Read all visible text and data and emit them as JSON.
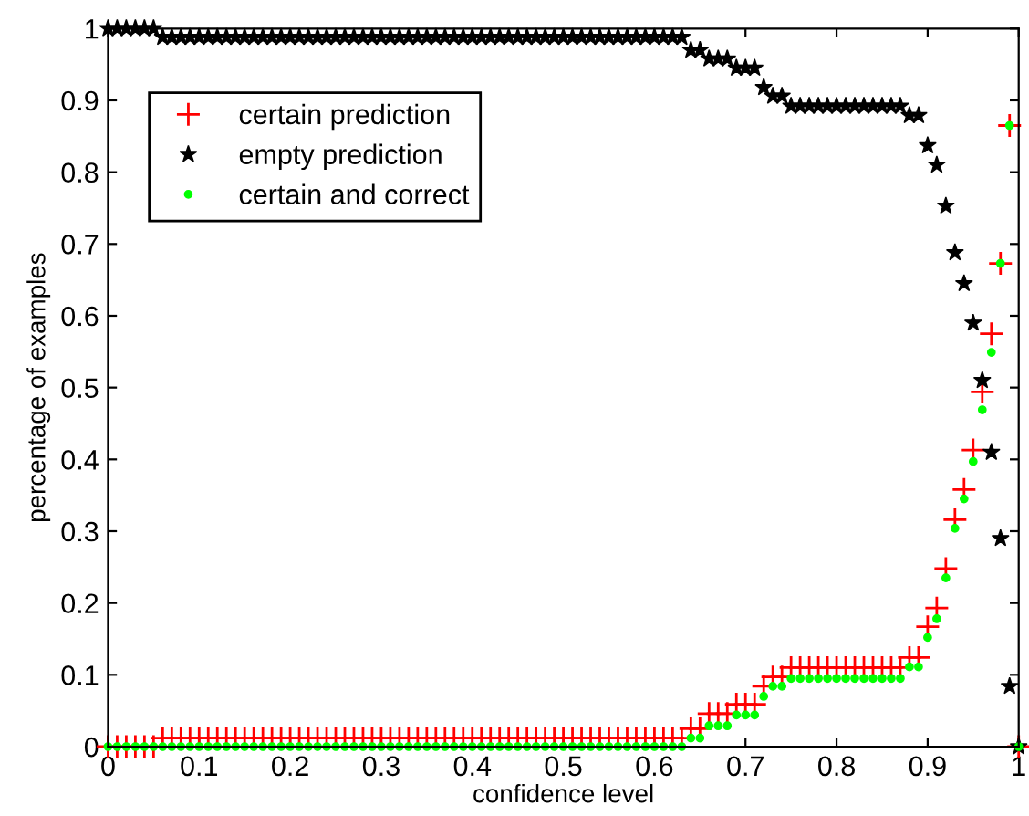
{
  "chart_data": {
    "type": "scatter",
    "xlabel": "confidence level",
    "ylabel": "percentage of examples",
    "x": [
      0,
      0.01,
      0.02,
      0.03,
      0.04,
      0.05,
      0.06,
      0.07,
      0.08,
      0.09,
      0.1,
      0.11,
      0.12,
      0.13,
      0.14,
      0.15,
      0.16,
      0.17,
      0.18,
      0.19,
      0.2,
      0.21,
      0.22,
      0.23,
      0.24,
      0.25,
      0.26,
      0.27,
      0.28,
      0.29,
      0.3,
      0.31,
      0.32,
      0.33,
      0.34,
      0.35,
      0.36,
      0.37,
      0.38,
      0.39,
      0.4,
      0.41,
      0.42,
      0.43,
      0.44,
      0.45,
      0.46,
      0.47,
      0.48,
      0.49,
      0.5,
      0.51,
      0.52,
      0.53,
      0.54,
      0.55,
      0.56,
      0.57,
      0.58,
      0.59,
      0.6,
      0.61,
      0.62,
      0.63,
      0.64,
      0.65,
      0.66,
      0.67,
      0.68,
      0.69,
      0.7,
      0.71,
      0.72,
      0.73,
      0.74,
      0.75,
      0.76,
      0.77,
      0.78,
      0.79,
      0.8,
      0.81,
      0.82,
      0.83,
      0.84,
      0.85,
      0.86,
      0.87,
      0.88,
      0.89,
      0.9,
      0.91,
      0.92,
      0.93,
      0.94,
      0.95,
      0.96,
      0.97,
      0.98,
      0.99,
      1
    ],
    "series": [
      {
        "name": "certain prediction",
        "color": "#ff0000",
        "marker": "cross",
        "values": [
          0,
          0,
          0,
          0,
          0,
          0,
          0.012,
          0.012,
          0.012,
          0.012,
          0.012,
          0.012,
          0.012,
          0.012,
          0.012,
          0.012,
          0.012,
          0.012,
          0.012,
          0.012,
          0.012,
          0.012,
          0.012,
          0.012,
          0.012,
          0.012,
          0.012,
          0.012,
          0.012,
          0.012,
          0.012,
          0.012,
          0.012,
          0.012,
          0.012,
          0.012,
          0.012,
          0.012,
          0.012,
          0.012,
          0.012,
          0.012,
          0.012,
          0.012,
          0.012,
          0.012,
          0.012,
          0.012,
          0.012,
          0.012,
          0.012,
          0.012,
          0.012,
          0.012,
          0.012,
          0.012,
          0.012,
          0.012,
          0.012,
          0.012,
          0.012,
          0.012,
          0.012,
          0.012,
          0.025,
          0.025,
          0.046,
          0.046,
          0.046,
          0.059,
          0.059,
          0.059,
          0.084,
          0.097,
          0.097,
          0.11,
          0.11,
          0.11,
          0.11,
          0.11,
          0.11,
          0.11,
          0.11,
          0.11,
          0.11,
          0.11,
          0.11,
          0.11,
          0.124,
          0.124,
          0.167,
          0.193,
          0.248,
          0.316,
          0.358,
          0.413,
          0.494,
          0.575,
          0.673,
          0.865,
          0
        ]
      },
      {
        "name": "empty prediction",
        "color": "#000000",
        "marker": "star",
        "values": [
          1,
          1,
          1,
          1,
          1,
          1,
          0.988,
          0.988,
          0.988,
          0.988,
          0.988,
          0.988,
          0.988,
          0.988,
          0.988,
          0.988,
          0.988,
          0.988,
          0.988,
          0.988,
          0.988,
          0.988,
          0.988,
          0.988,
          0.988,
          0.988,
          0.988,
          0.988,
          0.988,
          0.988,
          0.988,
          0.988,
          0.988,
          0.988,
          0.988,
          0.988,
          0.988,
          0.988,
          0.988,
          0.988,
          0.988,
          0.988,
          0.988,
          0.988,
          0.988,
          0.988,
          0.988,
          0.988,
          0.988,
          0.988,
          0.988,
          0.988,
          0.988,
          0.988,
          0.988,
          0.988,
          0.988,
          0.988,
          0.988,
          0.988,
          0.988,
          0.988,
          0.988,
          0.988,
          0.97,
          0.97,
          0.958,
          0.958,
          0.958,
          0.945,
          0.945,
          0.945,
          0.918,
          0.906,
          0.906,
          0.892,
          0.892,
          0.892,
          0.892,
          0.892,
          0.892,
          0.892,
          0.892,
          0.892,
          0.892,
          0.892,
          0.892,
          0.892,
          0.879,
          0.879,
          0.837,
          0.81,
          0.753,
          0.688,
          0.645,
          0.59,
          0.51,
          0.41,
          0.29,
          0.084,
          0
        ]
      },
      {
        "name": "certain and correct",
        "color": "#00ff00",
        "marker": "circle",
        "values": [
          0,
          0,
          0,
          0,
          0,
          0,
          0,
          0,
          0,
          0,
          0,
          0,
          0,
          0,
          0,
          0,
          0,
          0,
          0,
          0,
          0,
          0,
          0,
          0,
          0,
          0,
          0,
          0,
          0,
          0,
          0,
          0,
          0,
          0,
          0,
          0,
          0,
          0,
          0,
          0,
          0,
          0,
          0,
          0,
          0,
          0,
          0,
          0,
          0,
          0,
          0,
          0,
          0,
          0,
          0,
          0,
          0,
          0,
          0,
          0,
          0,
          0,
          0,
          0,
          0.012,
          0.012,
          0.029,
          0.029,
          0.029,
          0.044,
          0.044,
          0.044,
          0.07,
          0.084,
          0.084,
          0.095,
          0.095,
          0.095,
          0.095,
          0.095,
          0.095,
          0.095,
          0.095,
          0.095,
          0.095,
          0.095,
          0.095,
          0.095,
          0.111,
          0.111,
          0.152,
          0.178,
          0.235,
          0.304,
          0.345,
          0.397,
          0.469,
          0.549,
          0.673,
          0.865,
          0
        ]
      }
    ],
    "xlim": [
      0,
      1
    ],
    "ylim": [
      0,
      1
    ],
    "xticks": [
      0,
      0.1,
      0.2,
      0.3,
      0.4,
      0.5,
      0.6,
      0.7,
      0.8,
      0.9,
      1
    ],
    "yticks": [
      0,
      0.1,
      0.2,
      0.3,
      0.4,
      0.5,
      0.6,
      0.7,
      0.8,
      0.9,
      1
    ],
    "legend": "top left"
  }
}
